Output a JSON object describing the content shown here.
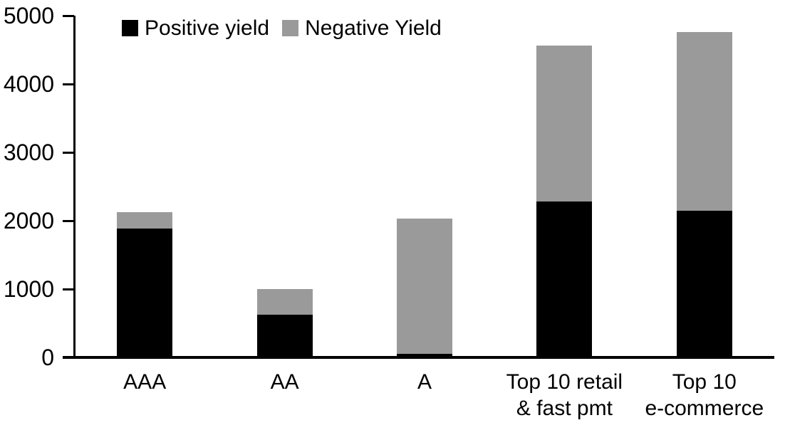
{
  "chart_data": {
    "type": "bar",
    "stacked": true,
    "title": "",
    "categories": [
      "AAA",
      "AA",
      "A",
      "Top 10 retail\n& fast pmt",
      "Top 10\ne-commerce"
    ],
    "series": [
      {
        "name": "Positive yield",
        "color": "#000000",
        "values": [
          1890,
          620,
          50,
          2280,
          2150
        ]
      },
      {
        "name": "Negative Yield",
        "color": "#9A9A9A",
        "values": [
          230,
          380,
          1980,
          2280,
          2610
        ]
      }
    ],
    "xlabel": "",
    "ylabel": "",
    "ylim": [
      0,
      5000
    ],
    "yticks": [
      0,
      1000,
      2000,
      3000,
      4000,
      5000
    ],
    "grid": false,
    "legend_position": "top",
    "axis_color": "#000000",
    "background_color": "#FFFFFF"
  }
}
